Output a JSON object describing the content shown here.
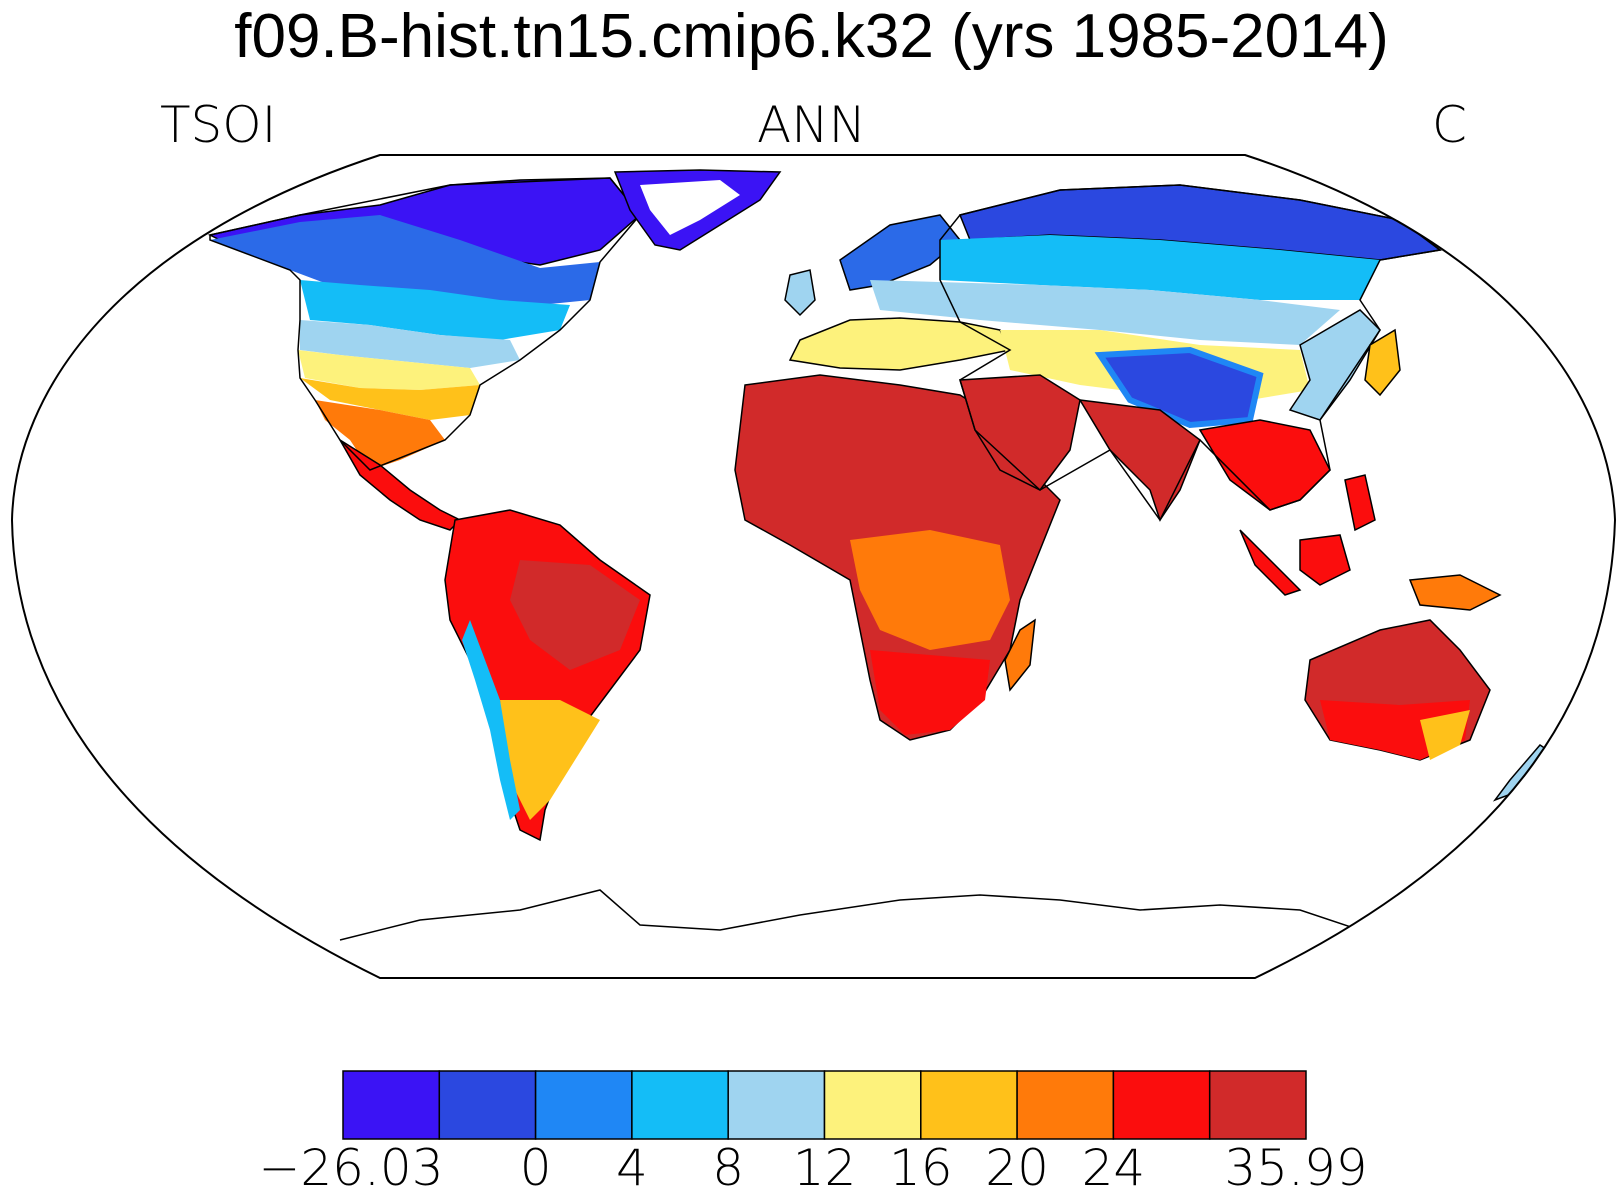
{
  "title": "f09.B-hist.tn15.cmip6.k32 (yrs 1985-2014)",
  "subtitle_left": "TSOI",
  "subtitle_center": "ANN",
  "subtitle_right": "C",
  "colors": {
    "background": "#ffffff",
    "ocean": "#ffffff",
    "outline": "#000000"
  },
  "colorbar": {
    "levels": [
      "−26.03",
      "0",
      "4",
      "8",
      "12",
      "16",
      "20",
      "24",
      "35.99"
    ],
    "colors": [
      "#3b13f5",
      "#2b48e0",
      "#1f87f5",
      "#14bdf7",
      "#9fd4f0",
      "#fdf27c",
      "#ffc11a",
      "#ff7a0a",
      "#fb0d0d",
      "#d12a2a"
    ]
  }
}
